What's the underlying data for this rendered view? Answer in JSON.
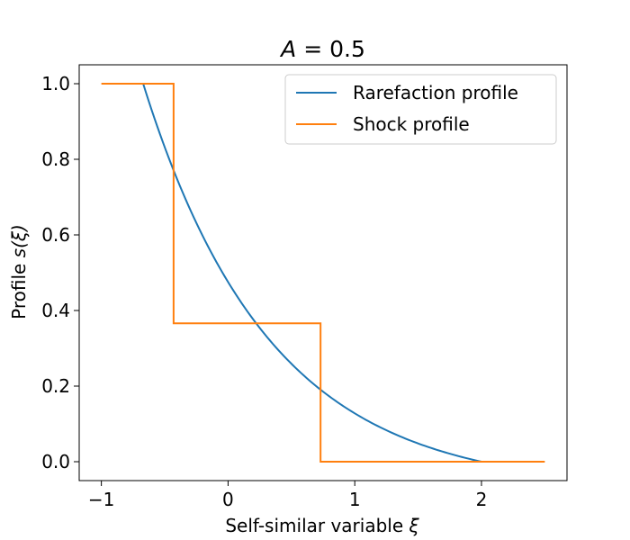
{
  "chart_data": {
    "type": "line",
    "title_prefix": "A",
    "title_eq": " = ",
    "title_value": "0.5",
    "xlabel_text": "Self-similar variable ",
    "xlabel_symbol": "ξ",
    "ylabel_text": "Profile ",
    "ylabel_symbol": "s(ξ)",
    "xlim": [
      -1.175,
      2.675
    ],
    "ylim": [
      -0.05,
      1.05
    ],
    "xticks": [
      -1,
      0,
      1,
      2
    ],
    "xtick_labels": [
      "−1",
      "0",
      "1",
      "2"
    ],
    "yticks": [
      0.0,
      0.2,
      0.4,
      0.6,
      0.8,
      1.0
    ],
    "ytick_labels": [
      "0.0",
      "0.2",
      "0.4",
      "0.6",
      "0.8",
      "1.0"
    ],
    "legend_position": "top-right",
    "series": [
      {
        "name": "Rarefaction profile",
        "color": "#1f77b4",
        "kind": "curve",
        "x_start": -0.67,
        "x_end": 2.0,
        "y_start": 1.0,
        "y_end": 0.0,
        "curve_form": "s = (exp(-(x-x_start)) - exp(-(x_end-x_start))) / (1 - exp(-(x_end-x_start)))"
      },
      {
        "name": "Shock profile",
        "color": "#ff7f0e",
        "kind": "step",
        "x": [
          -1.0,
          -0.43,
          -0.43,
          0.73,
          0.73,
          2.5
        ],
        "y": [
          1.0,
          1.0,
          0.366,
          0.366,
          0.0,
          0.0
        ]
      }
    ]
  }
}
